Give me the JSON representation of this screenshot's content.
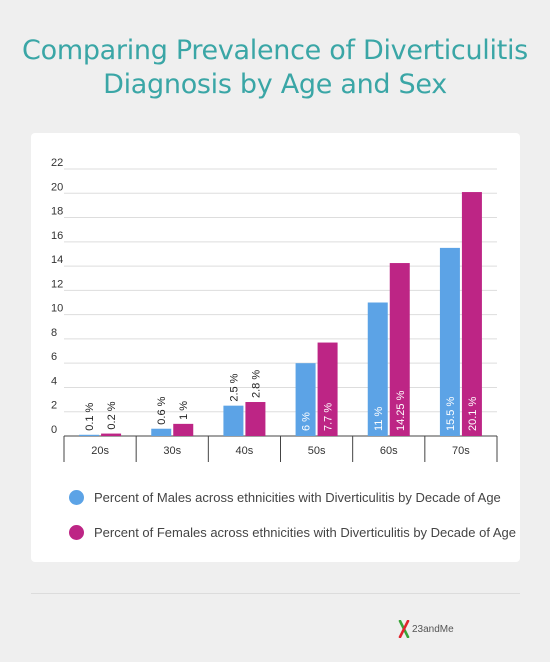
{
  "title": {
    "line1": "Comparing Prevalence of Diverticulitis",
    "line2": "Diagnosis by Age and Sex"
  },
  "colors": {
    "title": "#3aa6a6",
    "males": "#5ca3e6",
    "females": "#bd2585",
    "background": "#efefef",
    "card": "#ffffff"
  },
  "chart_data": {
    "type": "bar",
    "categories": [
      "20s",
      "30s",
      "40s",
      "50s",
      "60s",
      "70s"
    ],
    "series": [
      {
        "name": "Percent of Males across ethnicities with Diverticulitis by Decade of Age",
        "values": [
          0.1,
          0.6,
          2.5,
          6,
          11,
          15.5
        ],
        "labels": [
          "0.1 %",
          "0.6 %",
          "2.5 %",
          "6 %",
          "11 %",
          "15.5 %"
        ]
      },
      {
        "name": "Percent of Females across ethnicities with Diverticulitis by Decade of Age",
        "values": [
          0.2,
          1,
          2.8,
          7.7,
          14.25,
          20.1
        ],
        "labels": [
          "0.2 %",
          "1 %",
          "2.8 %",
          "7.7 %",
          "14.25 %",
          "20.1 %"
        ]
      }
    ],
    "yticks": [
      0,
      2,
      4,
      6,
      8,
      10,
      12,
      14,
      16,
      18,
      20,
      22
    ],
    "ylim": [
      0,
      22
    ],
    "grid": true,
    "legend_position": "bottom"
  },
  "legend": {
    "males": "Percent of Males across ethnicities with Diverticulitis by Decade of Age",
    "females": "Percent of Females across ethnicities with Diverticulitis by Decade of Age"
  },
  "logo": {
    "text": "23andMe",
    "icon": "23andme-x-logo-icon"
  }
}
